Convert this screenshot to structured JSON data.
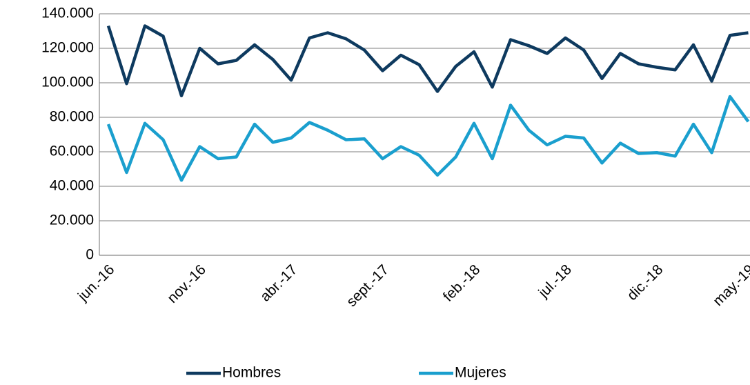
{
  "chart_data": {
    "type": "line",
    "categories": [
      "jun.-16",
      null,
      null,
      null,
      null,
      "nov.-16",
      null,
      null,
      null,
      null,
      "abr.-17",
      null,
      null,
      null,
      null,
      "sept.-17",
      null,
      null,
      null,
      null,
      "feb.-18",
      null,
      null,
      null,
      null,
      "jul.-18",
      null,
      null,
      null,
      null,
      "dic.-18",
      null,
      null,
      null,
      null,
      "may.-19"
    ],
    "series": [
      {
        "name": "Hombres",
        "color": "#0e3a5f",
        "values": [
          133000,
          99500,
          133000,
          127000,
          92500,
          120000,
          111000,
          113000,
          122000,
          113500,
          101500,
          126000,
          129000,
          125500,
          119000,
          107000,
          116000,
          110500,
          95000,
          109500,
          118000,
          97500,
          125000,
          121500,
          117000,
          126000,
          119000,
          102500,
          117000,
          111000,
          109000,
          107500,
          122000,
          101000,
          127500,
          129000
        ]
      },
      {
        "name": "Mujeres",
        "color": "#1a9fce",
        "values": [
          76000,
          48000,
          76500,
          67000,
          43500,
          63000,
          56000,
          57000,
          76000,
          65500,
          68000,
          77000,
          72500,
          67000,
          67500,
          56000,
          63000,
          58000,
          46500,
          57000,
          76500,
          56000,
          87000,
          72500,
          64000,
          69000,
          68000,
          53500,
          65000,
          59000,
          59500,
          57500,
          76000,
          59500,
          92000,
          77500
        ]
      }
    ],
    "ylim": [
      0,
      140000
    ],
    "yticks": [
      0,
      {
        "value": 20000,
        "label": "20.000"
      },
      {
        "value": 40000,
        "label": "40.000"
      },
      {
        "value": 60000,
        "label": "60.000"
      },
      {
        "value": 80000,
        "label": "80.000"
      },
      {
        "value": 100000,
        "label": "100.000"
      },
      {
        "value": 120000,
        "label": "120.000"
      },
      {
        "value": 140000,
        "label": "140.000"
      }
    ],
    "grid": true,
    "legend": "bottom"
  }
}
